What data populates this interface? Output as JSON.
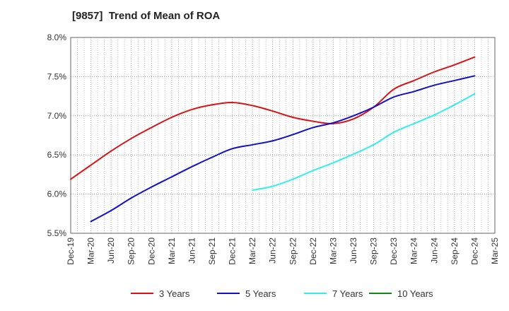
{
  "chart_data": {
    "type": "line",
    "title": "[9857]  Trend of Mean of ROA",
    "xlabel": "",
    "ylabel": "",
    "categories": [
      "Dec-19",
      "Mar-20",
      "Jun-20",
      "Sep-20",
      "Dec-20",
      "Mar-21",
      "Jun-21",
      "Sep-21",
      "Dec-21",
      "Mar-22",
      "Jun-22",
      "Sep-22",
      "Dec-22",
      "Mar-23",
      "Jun-23",
      "Sep-23",
      "Dec-23",
      "Mar-24",
      "Jun-24",
      "Sep-24",
      "Dec-24",
      "Mar-25"
    ],
    "ylim": [
      5.5,
      8.0
    ],
    "yticks": [
      5.5,
      6.0,
      6.5,
      7.0,
      7.5,
      8.0
    ],
    "ytick_labels": [
      "5.5%",
      "6.0%",
      "6.5%",
      "7.0%",
      "7.5%",
      "8.0%"
    ],
    "grid": true,
    "legend_position": "bottom",
    "series": [
      {
        "name": "3 Years",
        "color": "#dd1111",
        "values": [
          6.19,
          6.37,
          6.55,
          6.71,
          6.85,
          6.98,
          7.08,
          7.14,
          7.17,
          7.13,
          7.06,
          6.98,
          6.93,
          6.9,
          6.96,
          7.11,
          7.34,
          7.45,
          7.56,
          7.65,
          7.75,
          null
        ]
      },
      {
        "name": "5 Years",
        "color": "#1111cc",
        "values": [
          null,
          5.65,
          5.79,
          5.95,
          6.09,
          6.22,
          6.35,
          6.47,
          6.58,
          6.63,
          6.68,
          6.76,
          6.85,
          6.91,
          7.0,
          7.11,
          7.24,
          7.31,
          7.39,
          7.45,
          7.51,
          null
        ]
      },
      {
        "name": "7 Years",
        "color": "#33eeee",
        "values": [
          null,
          null,
          null,
          null,
          null,
          null,
          null,
          null,
          null,
          6.05,
          6.1,
          6.19,
          6.3,
          6.4,
          6.51,
          6.63,
          6.79,
          6.9,
          7.01,
          7.14,
          7.28,
          null
        ]
      },
      {
        "name": "10 Years",
        "color": "#118811",
        "values": [
          null,
          null,
          null,
          null,
          null,
          null,
          null,
          null,
          null,
          null,
          null,
          null,
          null,
          null,
          null,
          null,
          null,
          null,
          null,
          null,
          null,
          null
        ]
      }
    ]
  }
}
